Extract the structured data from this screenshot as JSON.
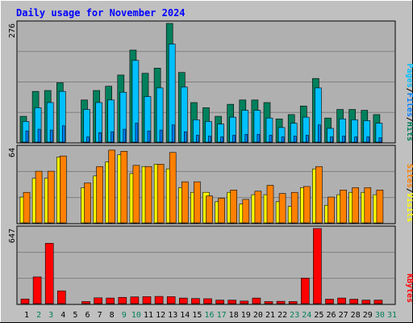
{
  "title": "Daily usage for November 2024",
  "colors": {
    "background": "#c0c0c0",
    "plot_background": "#b0b0b0",
    "gridline": "#808080",
    "title": "#0000ff",
    "hits": "#00805c",
    "files": "#0080ff",
    "pages": "#00c0ff",
    "visits": "#ffff00",
    "sites": "#ff8000",
    "kbytes": "#ff0000",
    "slash": "#000000",
    "weekend_label": "#00805c",
    "weekday_label": "#000000"
  },
  "chart_data": [
    {
      "type": "bar",
      "panel": "hits-files-pages",
      "ymax_label": "276",
      "legend": [
        "Pages",
        "Files",
        "Hits"
      ],
      "legend_sep": "/",
      "ylim": [
        0,
        276
      ],
      "categories": [
        "1",
        "2",
        "3",
        "4",
        "5",
        "6",
        "7",
        "8",
        "9",
        "10",
        "11",
        "12",
        "13",
        "14",
        "15",
        "16",
        "17",
        "18",
        "19",
        "20",
        "21",
        "22",
        "23",
        "24",
        "25",
        "26",
        "27",
        "28",
        "29",
        "30",
        "31"
      ],
      "weekend": [
        "2",
        "3",
        "9",
        "10",
        "16",
        "17",
        "23",
        "24",
        "30",
        "31"
      ],
      "series": [
        {
          "name": "Hits",
          "values": [
            60,
            118,
            120,
            138,
            0,
            98,
            120,
            130,
            156,
            214,
            160,
            172,
            276,
            162,
            92,
            80,
            60,
            88,
            98,
            98,
            92,
            54,
            64,
            84,
            148,
            56,
            76,
            76,
            74,
            64,
            0
          ]
        },
        {
          "name": "Files",
          "values": [
            26,
            30,
            28,
            38,
            0,
            12,
            22,
            24,
            30,
            44,
            26,
            28,
            40,
            24,
            16,
            14,
            12,
            16,
            18,
            18,
            16,
            12,
            14,
            16,
            40,
            12,
            14,
            12,
            12,
            10,
            0
          ]
        },
        {
          "name": "Pages",
          "values": [
            48,
            80,
            92,
            118,
            0,
            76,
            92,
            98,
            116,
            190,
            106,
            126,
            228,
            128,
            52,
            48,
            42,
            58,
            74,
            74,
            56,
            34,
            44,
            58,
            126,
            32,
            54,
            52,
            50,
            44,
            0
          ]
        }
      ]
    },
    {
      "type": "bar",
      "panel": "visits-sites",
      "ymax_label": "64",
      "legend": [
        "Sites",
        "Visits"
      ],
      "legend_sep": "/",
      "ylim": [
        0,
        64
      ],
      "categories": [
        "1",
        "2",
        "3",
        "4",
        "5",
        "6",
        "7",
        "8",
        "9",
        "10",
        "11",
        "12",
        "13",
        "14",
        "15",
        "16",
        "17",
        "18",
        "19",
        "20",
        "21",
        "22",
        "23",
        "24",
        "25",
        "26",
        "27",
        "28",
        "29",
        "30",
        "31"
      ],
      "series": [
        {
          "name": "Visits",
          "values": [
            22,
            38,
            38,
            56,
            0,
            30,
            40,
            52,
            58,
            42,
            48,
            50,
            46,
            30,
            26,
            26,
            18,
            26,
            16,
            24,
            24,
            18,
            14,
            30,
            46,
            15,
            24,
            26,
            26,
            24,
            0
          ]
        },
        {
          "name": "Sites",
          "values": [
            26,
            44,
            44,
            57,
            0,
            34,
            48,
            62,
            61,
            49,
            48,
            50,
            60,
            35,
            35,
            23,
            21,
            28,
            20,
            27,
            32,
            25,
            26,
            31,
            48,
            22,
            28,
            30,
            30,
            28,
            0
          ]
        }
      ]
    },
    {
      "type": "bar",
      "panel": "kbytes",
      "ymax_label": "647",
      "legend": [
        "KBytes"
      ],
      "legend_sep": "/",
      "ylim": [
        0,
        647
      ],
      "categories": [
        "1",
        "2",
        "3",
        "4",
        "5",
        "6",
        "7",
        "8",
        "9",
        "10",
        "11",
        "12",
        "13",
        "14",
        "15",
        "16",
        "17",
        "18",
        "19",
        "20",
        "21",
        "22",
        "23",
        "24",
        "25",
        "26",
        "27",
        "28",
        "29",
        "30",
        "31"
      ],
      "series": [
        {
          "name": "KBytes",
          "values": [
            40,
            230,
            520,
            110,
            0,
            18,
            50,
            48,
            54,
            58,
            60,
            62,
            60,
            48,
            44,
            42,
            30,
            30,
            22,
            48,
            18,
            20,
            18,
            220,
            647,
            38,
            48,
            38,
            30,
            30,
            0
          ]
        }
      ]
    }
  ]
}
